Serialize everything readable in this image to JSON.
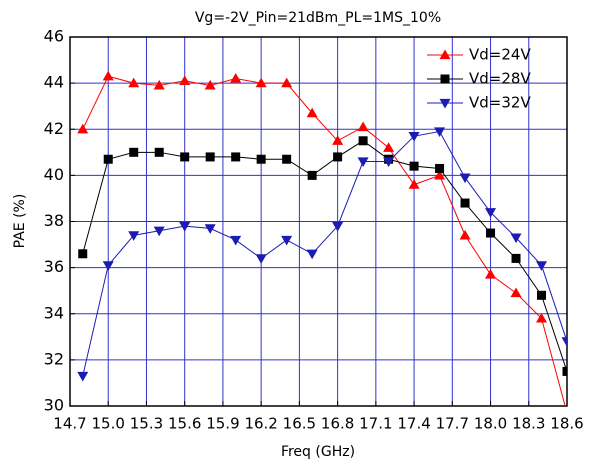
{
  "chart_data": {
    "type": "line",
    "title": "Vg=-2V_Pin=21dBm_PL=1MS_10%",
    "x_label": "Freq (GHz)",
    "y_label": "PAE (%)",
    "x": [
      14.8,
      15.0,
      15.2,
      15.4,
      15.6,
      15.8,
      16.0,
      16.2,
      16.4,
      16.6,
      16.8,
      17.0,
      17.2,
      17.4,
      17.6,
      17.8,
      18.0,
      18.2,
      18.4,
      18.6
    ],
    "series": [
      {
        "name": "Vd=24V",
        "color": "#ff0000",
        "marker": "triangle-up",
        "values": [
          42.0,
          44.3,
          44.0,
          43.9,
          44.1,
          43.9,
          44.2,
          44.0,
          44.0,
          42.7,
          41.5,
          42.1,
          41.2,
          39.6,
          40.0,
          37.4,
          35.7,
          34.9,
          33.8,
          29.7
        ]
      },
      {
        "name": "Vd=28V",
        "color": "#000000",
        "marker": "square",
        "values": [
          36.6,
          40.7,
          41.0,
          41.0,
          40.8,
          40.8,
          40.8,
          40.7,
          40.7,
          40.0,
          40.8,
          41.5,
          40.7,
          40.4,
          40.3,
          38.8,
          37.5,
          36.4,
          34.8,
          31.5
        ]
      },
      {
        "name": "Vd=32V",
        "color": "#1c1cb4",
        "marker": "triangle-down",
        "values": [
          31.3,
          36.1,
          37.4,
          37.6,
          37.8,
          37.7,
          37.2,
          36.4,
          37.2,
          36.6,
          37.8,
          40.6,
          40.6,
          41.7,
          41.9,
          39.9,
          38.4,
          37.3,
          36.1,
          32.8
        ]
      }
    ],
    "xlim": [
      14.7,
      18.6
    ],
    "xticks": [
      14.7,
      {
        "value": 15,
        "label": "15.0"
      },
      15.3,
      15.6,
      15.9,
      16.2,
      16.5,
      16.8,
      17.1,
      17.4,
      17.7,
      {
        "value": 18,
        "label": "18.0"
      },
      18.3,
      18.6
    ],
    "ylim": [
      30,
      46
    ],
    "yticks": [
      30,
      32,
      34,
      36,
      38,
      40,
      42,
      44,
      46
    ],
    "grid": true,
    "grid_color": "#3333cc",
    "legend": "upper right"
  }
}
